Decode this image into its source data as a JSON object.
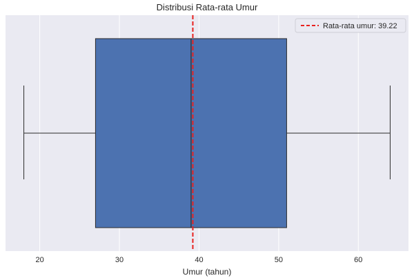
{
  "chart_data": {
    "type": "box",
    "title": "Distribusi Rata-rata Umur",
    "xlabel": "Umur (tahun)",
    "ylabel": "",
    "xlim": [
      15.7,
      66.3
    ],
    "xticks": [
      20,
      30,
      40,
      50,
      60
    ],
    "grid": "vertical",
    "orientation": "horizontal",
    "box": {
      "whisker_low": 18,
      "q1": 27,
      "median": 39,
      "q3": 51,
      "whisker_high": 64
    },
    "mean_line": {
      "value": 39.22,
      "label": "Rata-rata umur: 39.22",
      "style": "dashed"
    },
    "legend": {
      "placement": "top-right",
      "entries": [
        "Rata-rata umur: 39.22"
      ]
    },
    "colors": {
      "box_fill": "#4C72B0",
      "plot_background": "#EAEAF2",
      "grid": "#FFFFFF",
      "mean_line": "#E8201E",
      "lines": "#2B2B2B"
    }
  }
}
